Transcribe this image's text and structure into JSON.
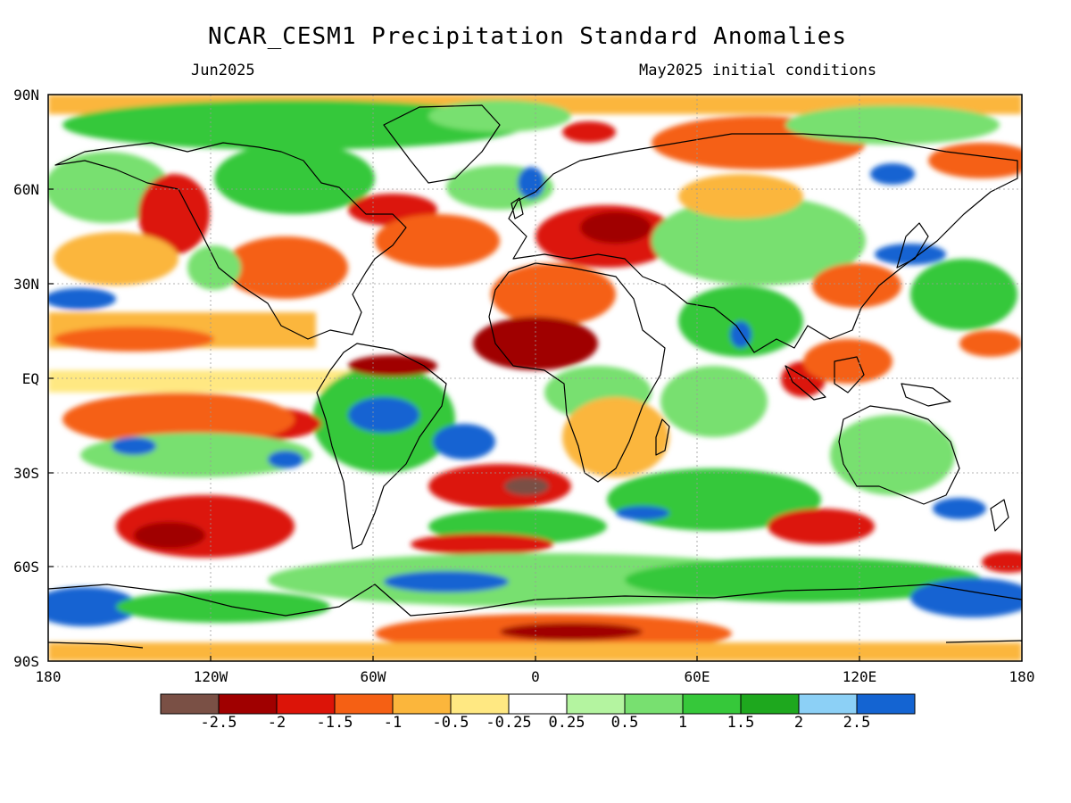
{
  "header": {
    "title": "NCAR_CESM1 Precipitation Standard Anomalies",
    "valid_month": "Jun2025",
    "init_conditions": "May2025 initial conditions"
  },
  "axes": {
    "lat_labels": [
      "90N",
      "60N",
      "30N",
      "EQ",
      "30S",
      "60S",
      "90S"
    ],
    "lat_values": [
      90,
      60,
      30,
      0,
      -30,
      -60,
      -90
    ],
    "lon_labels": [
      "180",
      "120W",
      "60W",
      "0",
      "60E",
      "120E",
      "180"
    ],
    "lon_values": [
      -180,
      -120,
      -60,
      0,
      60,
      120,
      180
    ]
  },
  "colorbar": {
    "labels": [
      "-2.5",
      "-2",
      "-1.5",
      "-1",
      "-0.5",
      "-0.25",
      "0.25",
      "0.5",
      "1",
      "1.5",
      "2",
      "2.5"
    ],
    "colors": [
      "#7a5045",
      "#a00000",
      "#dc1408",
      "#f56014",
      "#fbb63c",
      "#ffe882",
      "#ffffff",
      "#b4f4a0",
      "#78e070",
      "#36c83a",
      "#1ea81e",
      "#8cd0f6",
      "#1464d2"
    ]
  },
  "map_regions": {
    "ocean_fill": "#ffffff",
    "coastline_color": "#000000",
    "gridline_color": "#9a9a9a"
  }
}
